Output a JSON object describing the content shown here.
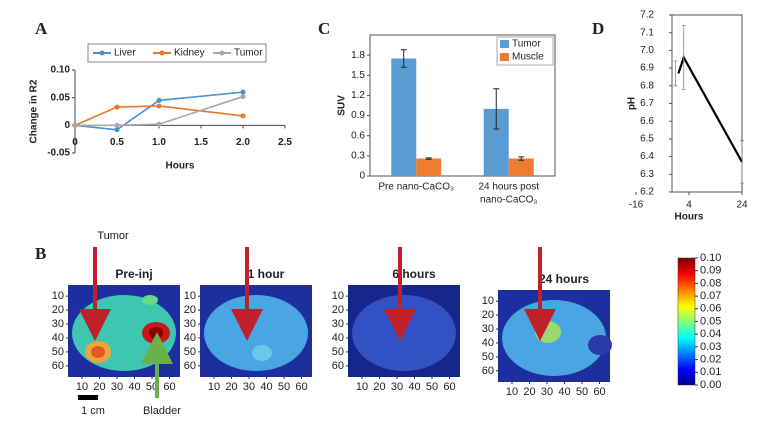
{
  "chart_data": [
    {
      "type": "line",
      "panel_label": "A",
      "x": [
        0,
        0.5,
        1,
        2
      ],
      "series": [
        {
          "name": "Liver",
          "color": "#4a90d0",
          "values": [
            0,
            -0.008,
            0.045,
            0.06
          ]
        },
        {
          "name": "Kidney",
          "color": "#e8782a",
          "values": [
            0,
            0.033,
            0.035,
            0.017
          ]
        },
        {
          "name": "Tumor",
          "color": "#a8a8a8",
          "values": [
            0,
            0,
            0.002,
            0.052
          ]
        }
      ],
      "xlim": [
        0,
        2.5
      ],
      "xticks": [
        0,
        0.5,
        {
          "value": 1,
          "label": "1.0"
        },
        1.5,
        {
          "value": 2,
          "label": "2.0"
        },
        2.5
      ],
      "ylim": [
        -0.05,
        0.1
      ],
      "yticks": [
        {
          "value": 0.1,
          "label": "0.10"
        },
        0.05,
        0,
        -0.05
      ],
      "xlabel": "Hours",
      "ylabel": "Change in R2",
      "legend": "top"
    },
    {
      "type": "bar",
      "panel_label": "C",
      "categories": [
        [
          "Pre nano-CaCO₃"
        ],
        [
          "24 hours post",
          "nano-CaCO₃"
        ]
      ],
      "series": [
        {
          "name": "Tumor",
          "color": "#5b9bd5",
          "values": [
            1.75,
            1.0
          ],
          "errors": [
            0.13,
            0.3
          ]
        },
        {
          "name": "Muscle",
          "color": "#ed7d31",
          "values": [
            0.26,
            0.26
          ],
          "errors": [
            0.01,
            0.025
          ]
        }
      ],
      "ylim": [
        0,
        2.1
      ],
      "yticks": [
        0,
        0.3,
        0.6,
        0.9,
        1.2,
        1.5,
        1.8
      ],
      "ylabel": "SUV",
      "legend": "top-right"
    },
    {
      "type": "line",
      "panel_label": "D",
      "x": [
        0,
        2,
        24
      ],
      "series": [
        {
          "color": "#000000",
          "values": [
            6.87,
            6.96,
            6.37
          ],
          "errors": [
            0.07,
            0.18,
            0.12
          ]
        }
      ],
      "xlim": [
        -16,
        24
      ],
      "xticks": [
        -16,
        4,
        24
      ],
      "ylim": [
        6.2,
        7.2
      ],
      "yticks": [
        6.2,
        6.3,
        6.4,
        6.5,
        6.6,
        6.7,
        6.8,
        6.9,
        {
          "value": 7,
          "label": "7.0"
        },
        7.1,
        7.2
      ],
      "xlabel": "Hours",
      "ylabel": "pH"
    }
  ],
  "panel_b": {
    "panel_label": "B",
    "images": [
      {
        "title": "Pre-inj"
      },
      {
        "title": "1 hour"
      },
      {
        "title": "6 hours"
      },
      {
        "title": "24 hours"
      }
    ],
    "xlim": [
      2,
      66
    ],
    "ylim": [
      2,
      68
    ],
    "xticks": [
      10,
      20,
      30,
      40,
      50,
      60
    ],
    "yticks": [
      10,
      20,
      30,
      40,
      50,
      60
    ],
    "tumor_label": "Tumor",
    "bladder_label": "Bladder",
    "scale_label": "1 cm",
    "colorbar": {
      "lim": [
        0,
        0.1
      ],
      "ticks": [
        {
          "value": 0.1,
          "label": "0.10"
        },
        0.09,
        0.08,
        0.07,
        0.06,
        0.05,
        0.04,
        0.03,
        0.02,
        0.01,
        {
          "value": 0,
          "label": "0.00"
        }
      ]
    }
  }
}
